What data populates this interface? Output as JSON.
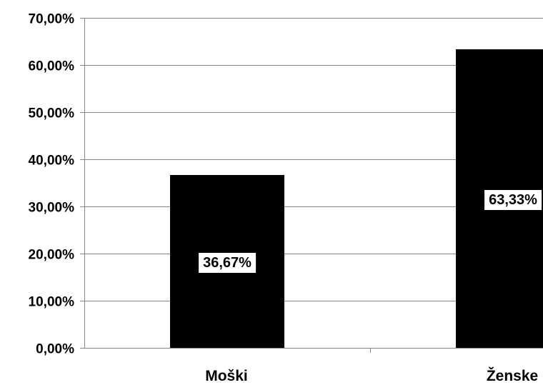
{
  "chart_data": {
    "type": "bar",
    "categories": [
      "Moški",
      "Ženske"
    ],
    "values": [
      36.67,
      63.33
    ],
    "data_labels": [
      "36,67%",
      "63,33%"
    ],
    "ylim": [
      0,
      70
    ],
    "yticks": [
      0,
      10,
      20,
      30,
      40,
      50,
      60,
      70
    ],
    "ytick_labels": [
      "0,00%",
      "10,00%",
      "20,00%",
      "30,00%",
      "40,00%",
      "50,00%",
      "60,00%",
      "70,00%"
    ],
    "grid": true,
    "legend": false,
    "bar_color": "#000000",
    "gridline_color": "#868686"
  }
}
